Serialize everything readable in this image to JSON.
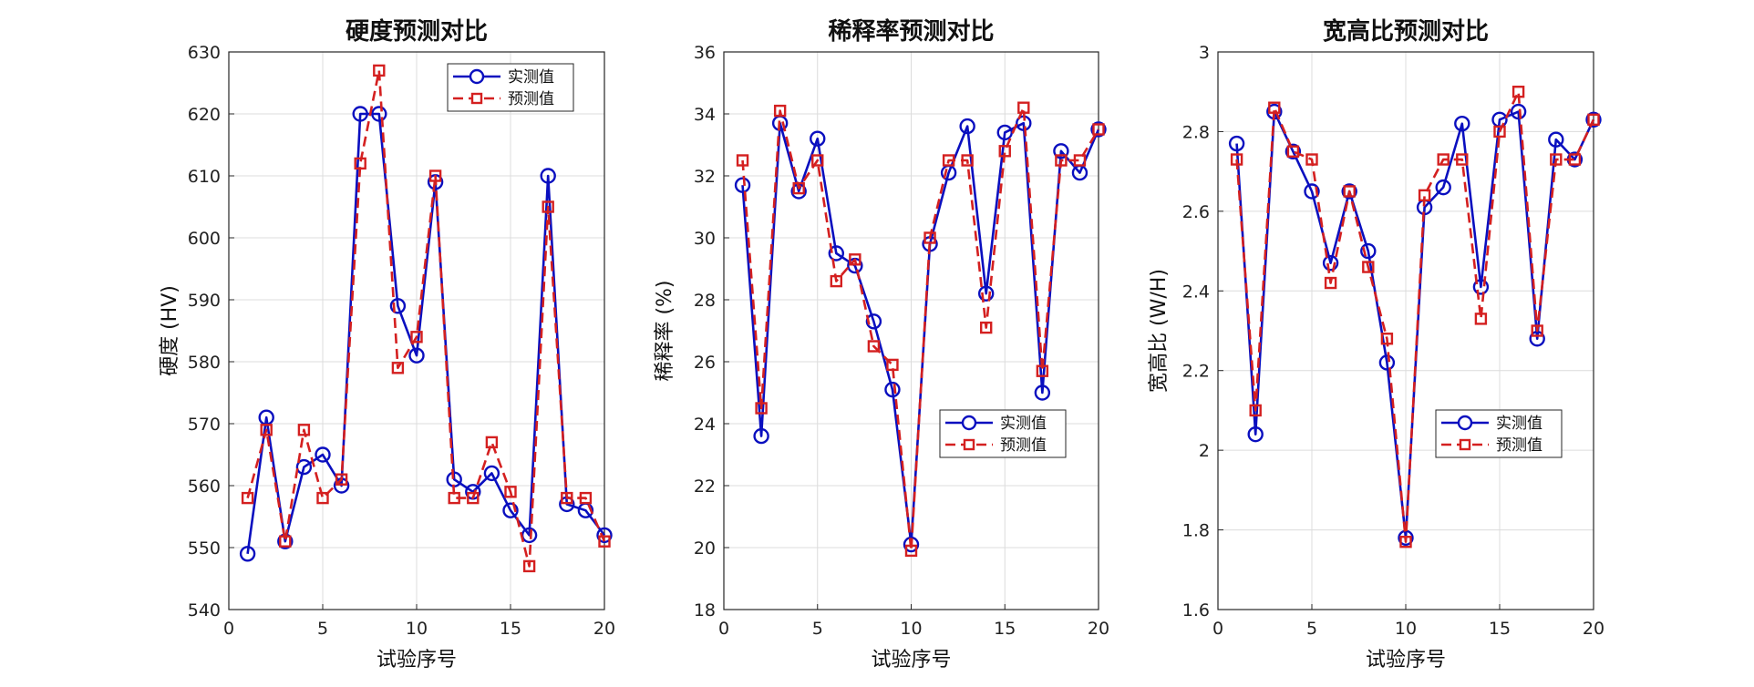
{
  "chart_data": [
    {
      "type": "line",
      "title": "硬度预测对比",
      "xlabel": "试验序号",
      "ylabel": "硬度 (HV)",
      "xlim": [
        0,
        20
      ],
      "ylim": [
        540,
        630
      ],
      "xticks": [
        "0",
        "5",
        "10",
        "15",
        "20"
      ],
      "yticks": [
        "540",
        "550",
        "560",
        "570",
        "580",
        "590",
        "600",
        "610",
        "620",
        "630"
      ],
      "grid": true,
      "legend_position": "top-right",
      "x": [
        1,
        2,
        3,
        4,
        5,
        6,
        7,
        8,
        9,
        10,
        11,
        12,
        13,
        14,
        15,
        16,
        17,
        18,
        19,
        20
      ],
      "series": [
        {
          "name": "实测值",
          "color": "#0a0fbf",
          "style": "solid-circle",
          "values": [
            549,
            571,
            551,
            563,
            565,
            560,
            620,
            620,
            589,
            581,
            609,
            561,
            559,
            562,
            556,
            552,
            610,
            557,
            556,
            552
          ]
        },
        {
          "name": "预测值",
          "color": "#d42020",
          "style": "dashed-square",
          "values": [
            558,
            569,
            551,
            569,
            558,
            561,
            612,
            627,
            579,
            584,
            610,
            558,
            558,
            567,
            559,
            547,
            605,
            558,
            558,
            551
          ]
        }
      ]
    },
    {
      "type": "line",
      "title": "稀释率预测对比",
      "xlabel": "试验序号",
      "ylabel": "稀释率 (%)",
      "xlim": [
        0,
        20
      ],
      "ylim": [
        18,
        36
      ],
      "xticks": [
        "0",
        "5",
        "10",
        "15",
        "20"
      ],
      "yticks": [
        "18",
        "20",
        "22",
        "24",
        "26",
        "28",
        "30",
        "32",
        "34",
        "36"
      ],
      "grid": true,
      "legend_position": "bottom-right",
      "x": [
        1,
        2,
        3,
        4,
        5,
        6,
        7,
        8,
        9,
        10,
        11,
        12,
        13,
        14,
        15,
        16,
        17,
        18,
        19,
        20
      ],
      "series": [
        {
          "name": "实测值",
          "color": "#0a0fbf",
          "style": "solid-circle",
          "values": [
            31.7,
            23.6,
            33.7,
            31.5,
            33.2,
            29.5,
            29.1,
            27.3,
            25.1,
            20.1,
            29.8,
            32.1,
            33.6,
            28.2,
            33.4,
            33.7,
            25.0,
            32.8,
            32.1,
            33.5
          ]
        },
        {
          "name": "预测值",
          "color": "#d42020",
          "style": "dashed-square",
          "values": [
            32.5,
            24.5,
            34.1,
            31.6,
            32.5,
            28.6,
            29.3,
            26.5,
            25.9,
            19.9,
            30.0,
            32.5,
            32.5,
            27.1,
            32.8,
            34.2,
            25.7,
            32.5,
            32.5,
            33.5
          ]
        }
      ]
    },
    {
      "type": "line",
      "title": "宽高比预测对比",
      "xlabel": "试验序号",
      "ylabel": "宽高比 (W/H)",
      "xlim": [
        0,
        20
      ],
      "ylim": [
        1.6,
        3.0
      ],
      "xticks": [
        "0",
        "5",
        "10",
        "15",
        "20"
      ],
      "yticks": [
        "1.6",
        "1.8",
        "2",
        "2.2",
        "2.4",
        "2.6",
        "2.8",
        "3"
      ],
      "grid": true,
      "legend_position": "bottom-right",
      "x": [
        1,
        2,
        3,
        4,
        5,
        6,
        7,
        8,
        9,
        10,
        11,
        12,
        13,
        14,
        15,
        16,
        17,
        18,
        19,
        20
      ],
      "series": [
        {
          "name": "实测值",
          "color": "#0a0fbf",
          "style": "solid-circle",
          "values": [
            2.77,
            2.04,
            2.85,
            2.75,
            2.65,
            2.47,
            2.65,
            2.5,
            2.22,
            1.78,
            2.61,
            2.66,
            2.82,
            2.41,
            2.83,
            2.85,
            2.28,
            2.78,
            2.73,
            2.83
          ]
        },
        {
          "name": "预测值",
          "color": "#d42020",
          "style": "dashed-square",
          "values": [
            2.73,
            2.1,
            2.86,
            2.75,
            2.73,
            2.42,
            2.65,
            2.46,
            2.28,
            1.77,
            2.64,
            2.73,
            2.73,
            2.33,
            2.8,
            2.9,
            2.3,
            2.73,
            2.73,
            2.83
          ]
        }
      ]
    }
  ]
}
